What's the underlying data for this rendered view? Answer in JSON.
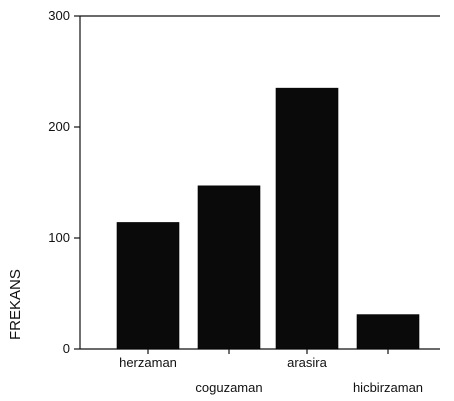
{
  "chart_data": {
    "type": "bar",
    "categories": [
      "herzaman",
      "coguzaman",
      "arasira",
      "hicbirzaman"
    ],
    "values": [
      114,
      147,
      235,
      31
    ],
    "xlabel": "",
    "ylabel": "FREKANS",
    "ylim": [
      0,
      300
    ],
    "yticks": [
      0,
      100,
      200,
      300
    ],
    "grid": false,
    "colors": {
      "bar": "#0a0a0a",
      "axis": "#111111",
      "background": "#ffffff"
    }
  }
}
